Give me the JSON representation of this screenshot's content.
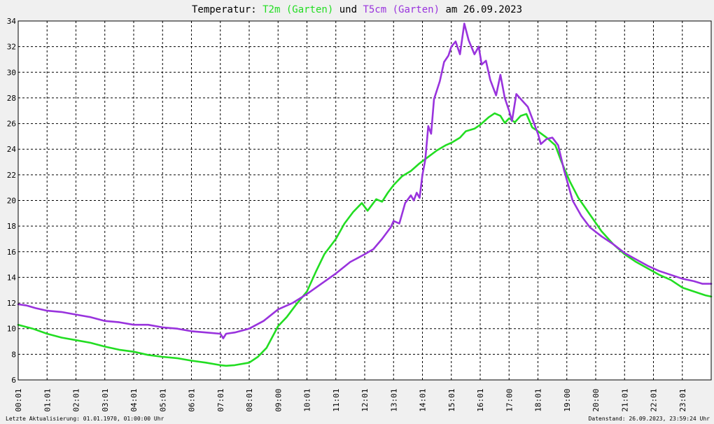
{
  "title": {
    "prefix": "Temperatur: ",
    "series1": "T2m (Garten)",
    "middle": " und ",
    "series2": "T5cm (Garten)",
    "suffix": " am 26.09.2023"
  },
  "footer": {
    "left": "Letzte Aktualisierung: 01.01.1970, 01:00:00 Uhr",
    "right": "Datenstand: 26.09.2023, 23:59:24 Uhr"
  },
  "colors": {
    "background": "#f0f0f0",
    "plot_area": "#ffffff",
    "grid": "#000000",
    "series_t2m": "#22dd22",
    "series_t5cm": "#9933dd"
  },
  "chart_data": {
    "type": "line",
    "title": "Temperatur: T2m (Garten) und T5cm (Garten) am 26.09.2023",
    "xlabel": "",
    "ylabel": "",
    "x_range": [
      0,
      24
    ],
    "ylim": [
      6,
      34
    ],
    "grid": true,
    "y_ticks": [
      "6",
      "8",
      "10",
      "12",
      "14",
      "16",
      "18",
      "20",
      "22",
      "24",
      "26",
      "28",
      "30",
      "32",
      "34"
    ],
    "x_ticks": [
      "00:01",
      "01:01",
      "02:01",
      "03:01",
      "04:01",
      "05:01",
      "06:01",
      "07:01",
      "08:01",
      "09:00",
      "10:01",
      "11:01",
      "12:01",
      "13:01",
      "14:01",
      "15:01",
      "16:01",
      "17:00",
      "18:01",
      "19:00",
      "20:00",
      "21:01",
      "22:01",
      "23:01"
    ],
    "series": [
      {
        "name": "T2m (Garten)",
        "color": "#22dd22",
        "points": [
          [
            0.0,
            10.3
          ],
          [
            0.5,
            10.0
          ],
          [
            1.0,
            9.6
          ],
          [
            1.5,
            9.3
          ],
          [
            2.0,
            9.1
          ],
          [
            2.5,
            8.9
          ],
          [
            3.0,
            8.6
          ],
          [
            3.5,
            8.35
          ],
          [
            4.0,
            8.2
          ],
          [
            4.5,
            7.95
          ],
          [
            5.0,
            7.8
          ],
          [
            5.5,
            7.7
          ],
          [
            6.0,
            7.5
          ],
          [
            6.5,
            7.35
          ],
          [
            7.0,
            7.15
          ],
          [
            7.2,
            7.1
          ],
          [
            7.5,
            7.15
          ],
          [
            8.0,
            7.35
          ],
          [
            8.3,
            7.8
          ],
          [
            8.6,
            8.5
          ],
          [
            9.0,
            10.2
          ],
          [
            9.3,
            10.9
          ],
          [
            9.6,
            11.8
          ],
          [
            10.0,
            12.9
          ],
          [
            10.3,
            14.4
          ],
          [
            10.6,
            15.8
          ],
          [
            11.0,
            17.0
          ],
          [
            11.3,
            18.2
          ],
          [
            11.6,
            19.1
          ],
          [
            11.9,
            19.8
          ],
          [
            12.1,
            19.2
          ],
          [
            12.4,
            20.1
          ],
          [
            12.6,
            19.9
          ],
          [
            12.8,
            20.6
          ],
          [
            13.0,
            21.2
          ],
          [
            13.3,
            21.9
          ],
          [
            13.6,
            22.3
          ],
          [
            13.9,
            22.9
          ],
          [
            14.2,
            23.4
          ],
          [
            14.5,
            23.9
          ],
          [
            14.8,
            24.3
          ],
          [
            15.0,
            24.5
          ],
          [
            15.3,
            24.9
          ],
          [
            15.5,
            25.4
          ],
          [
            15.8,
            25.6
          ],
          [
            16.0,
            25.9
          ],
          [
            16.3,
            26.5
          ],
          [
            16.5,
            26.8
          ],
          [
            16.7,
            26.6
          ],
          [
            16.85,
            26.05
          ],
          [
            17.0,
            26.4
          ],
          [
            17.2,
            26.1
          ],
          [
            17.4,
            26.6
          ],
          [
            17.6,
            26.75
          ],
          [
            17.8,
            25.7
          ],
          [
            18.0,
            25.4
          ],
          [
            18.3,
            24.9
          ],
          [
            18.6,
            24.3
          ],
          [
            18.8,
            23.1
          ],
          [
            19.1,
            21.5
          ],
          [
            19.4,
            20.2
          ],
          [
            19.8,
            18.9
          ],
          [
            20.2,
            17.6
          ],
          [
            20.6,
            16.6
          ],
          [
            21.0,
            15.8
          ],
          [
            21.4,
            15.2
          ],
          [
            21.8,
            14.7
          ],
          [
            22.2,
            14.2
          ],
          [
            22.6,
            13.8
          ],
          [
            23.0,
            13.2
          ],
          [
            23.4,
            12.9
          ],
          [
            23.8,
            12.6
          ],
          [
            24.0,
            12.5
          ]
        ]
      },
      {
        "name": "T5cm (Garten)",
        "color": "#9933dd",
        "points": [
          [
            0.0,
            11.9
          ],
          [
            0.3,
            11.8
          ],
          [
            0.6,
            11.6
          ],
          [
            1.0,
            11.4
          ],
          [
            1.5,
            11.3
          ],
          [
            2.0,
            11.1
          ],
          [
            2.5,
            10.9
          ],
          [
            3.0,
            10.6
          ],
          [
            3.5,
            10.5
          ],
          [
            4.0,
            10.3
          ],
          [
            4.5,
            10.3
          ],
          [
            5.0,
            10.1
          ],
          [
            5.5,
            10.0
          ],
          [
            6.0,
            9.8
          ],
          [
            6.5,
            9.7
          ],
          [
            7.0,
            9.6
          ],
          [
            7.1,
            9.25
          ],
          [
            7.2,
            9.6
          ],
          [
            7.5,
            9.7
          ],
          [
            8.0,
            10.0
          ],
          [
            8.5,
            10.6
          ],
          [
            9.0,
            11.5
          ],
          [
            9.5,
            12.0
          ],
          [
            10.0,
            12.7
          ],
          [
            10.5,
            13.5
          ],
          [
            11.0,
            14.3
          ],
          [
            11.5,
            15.2
          ],
          [
            12.0,
            15.8
          ],
          [
            12.3,
            16.2
          ],
          [
            12.6,
            17.0
          ],
          [
            12.9,
            17.9
          ],
          [
            13.0,
            18.4
          ],
          [
            13.2,
            18.2
          ],
          [
            13.4,
            19.8
          ],
          [
            13.6,
            20.4
          ],
          [
            13.7,
            20.0
          ],
          [
            13.8,
            20.6
          ],
          [
            13.9,
            20.2
          ],
          [
            14.0,
            22.0
          ],
          [
            14.1,
            23.2
          ],
          [
            14.2,
            25.8
          ],
          [
            14.3,
            25.2
          ],
          [
            14.4,
            27.9
          ],
          [
            14.6,
            29.3
          ],
          [
            14.75,
            30.8
          ],
          [
            14.9,
            31.3
          ],
          [
            15.0,
            32.0
          ],
          [
            15.15,
            32.4
          ],
          [
            15.3,
            31.4
          ],
          [
            15.45,
            33.8
          ],
          [
            15.6,
            32.5
          ],
          [
            15.8,
            31.4
          ],
          [
            15.95,
            32.0
          ],
          [
            16.05,
            30.6
          ],
          [
            16.2,
            30.9
          ],
          [
            16.35,
            29.4
          ],
          [
            16.55,
            28.2
          ],
          [
            16.7,
            29.8
          ],
          [
            16.85,
            28.0
          ],
          [
            17.0,
            27.0
          ],
          [
            17.1,
            26.2
          ],
          [
            17.25,
            28.3
          ],
          [
            17.45,
            27.8
          ],
          [
            17.65,
            27.3
          ],
          [
            17.8,
            26.4
          ],
          [
            18.0,
            25.2
          ],
          [
            18.1,
            24.4
          ],
          [
            18.3,
            24.8
          ],
          [
            18.5,
            24.9
          ],
          [
            18.7,
            24.3
          ],
          [
            18.9,
            22.4
          ],
          [
            19.2,
            20.0
          ],
          [
            19.5,
            18.8
          ],
          [
            19.8,
            17.9
          ],
          [
            20.2,
            17.2
          ],
          [
            20.6,
            16.6
          ],
          [
            21.0,
            15.9
          ],
          [
            21.4,
            15.4
          ],
          [
            21.8,
            14.9
          ],
          [
            22.2,
            14.5
          ],
          [
            22.6,
            14.2
          ],
          [
            23.0,
            13.9
          ],
          [
            23.4,
            13.7
          ],
          [
            23.7,
            13.5
          ],
          [
            24.0,
            13.5
          ]
        ]
      }
    ]
  }
}
